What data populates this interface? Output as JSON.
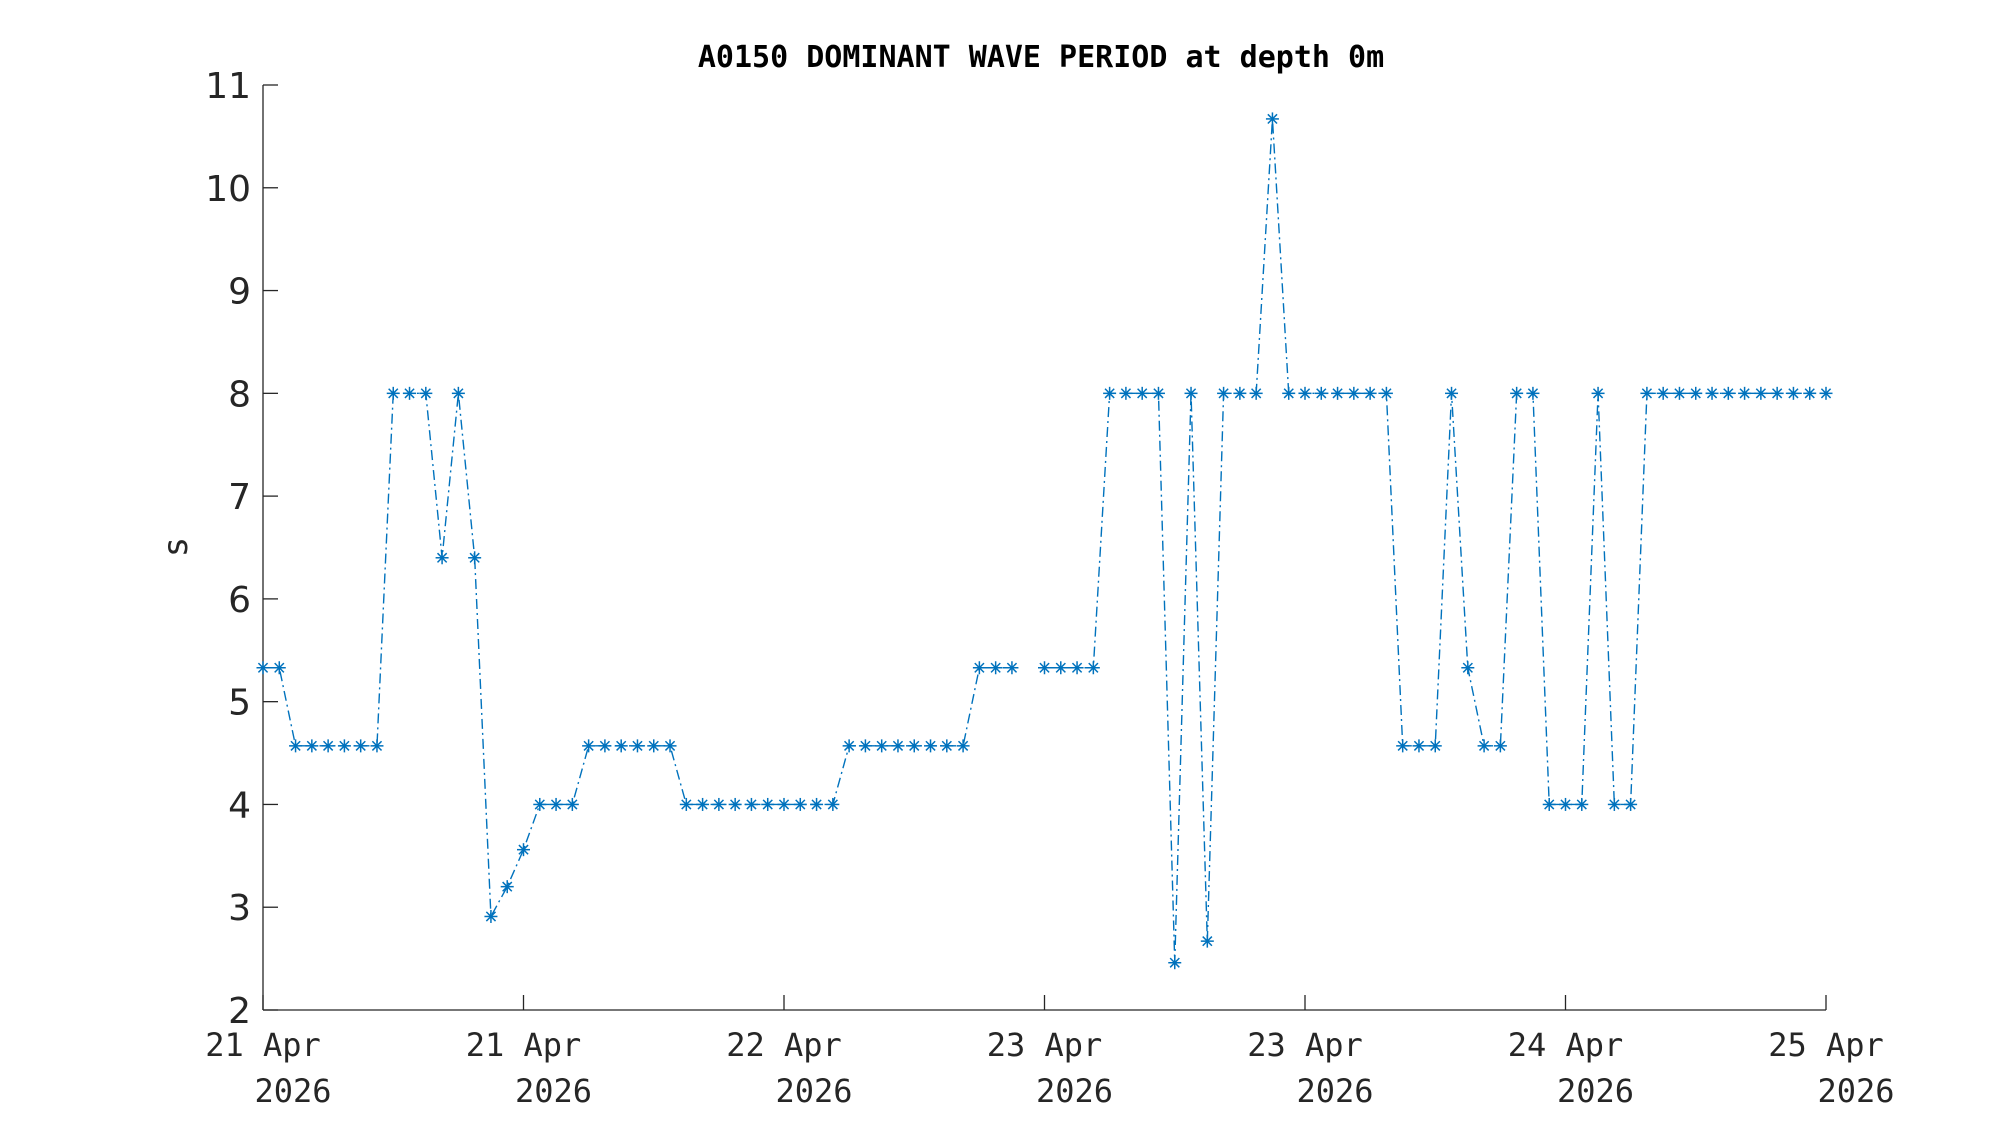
{
  "chart_data": {
    "type": "line",
    "title": "A0150 DOMINANT WAVE PERIOD at depth 0m",
    "xlabel": "",
    "ylabel": "s",
    "ylim": [
      2,
      11
    ],
    "yticks": [
      "2",
      "3",
      "4",
      "5",
      "6",
      "7",
      "8",
      "9",
      "10",
      "11"
    ],
    "xlim": [
      "2026-04-21T00:00",
      "2026-04-25T00:00"
    ],
    "xticks": [
      {
        "value": "2026-04-21T00:00",
        "line1": "21 Apr",
        "line2": "2026"
      },
      {
        "value": "2026-04-21T16:00",
        "line1": "21 Apr",
        "line2": "2026"
      },
      {
        "value": "2026-04-22T08:00",
        "line1": "22 Apr",
        "line2": "2026"
      },
      {
        "value": "2026-04-23T00:00",
        "line1": "23 Apr",
        "line2": "2026"
      },
      {
        "value": "2026-04-23T16:00",
        "line1": "23 Apr",
        "line2": "2026"
      },
      {
        "value": "2026-04-24T08:00",
        "line1": "24 Apr",
        "line2": "2026"
      },
      {
        "value": "2026-04-25T00:00",
        "line1": "25 Apr",
        "line2": "2026"
      }
    ],
    "marker": "asterisk",
    "line_style": "dash-dot",
    "color": "#0072BD",
    "grid": false,
    "series": [
      {
        "x": [
          "2026-04-21T00:00",
          "2026-04-21T01:00",
          "2026-04-21T02:00",
          "2026-04-21T03:00",
          "2026-04-21T04:00",
          "2026-04-21T05:00",
          "2026-04-21T06:00",
          "2026-04-21T07:00",
          "2026-04-21T08:00",
          "2026-04-21T09:00",
          "2026-04-21T10:00",
          "2026-04-21T11:00",
          "2026-04-21T12:00",
          "2026-04-21T13:00",
          "2026-04-21T14:00",
          "2026-04-21T15:00",
          "2026-04-21T16:00",
          "2026-04-21T17:00",
          "2026-04-21T18:00",
          "2026-04-21T19:00",
          "2026-04-21T20:00",
          "2026-04-21T21:00",
          "2026-04-21T22:00",
          "2026-04-21T23:00",
          "2026-04-22T00:00",
          "2026-04-22T01:00",
          "2026-04-22T02:00",
          "2026-04-22T03:00",
          "2026-04-22T04:00",
          "2026-04-22T05:00",
          "2026-04-22T06:00",
          "2026-04-22T07:00",
          "2026-04-22T08:00",
          "2026-04-22T09:00",
          "2026-04-22T10:00",
          "2026-04-22T11:00",
          "2026-04-22T12:00",
          "2026-04-22T13:00",
          "2026-04-22T14:00",
          "2026-04-22T15:00",
          "2026-04-22T16:00",
          "2026-04-22T17:00",
          "2026-04-22T18:00",
          "2026-04-22T19:00",
          "2026-04-22T20:00",
          "2026-04-22T21:00",
          "2026-04-22T22:00",
          "2026-04-22T23:00",
          "2026-04-23T00:00",
          "2026-04-23T01:00",
          "2026-04-23T02:00",
          "2026-04-23T03:00",
          "2026-04-23T04:00",
          "2026-04-23T05:00",
          "2026-04-23T06:00",
          "2026-04-23T07:00",
          "2026-04-23T08:00",
          "2026-04-23T09:00",
          "2026-04-23T10:00",
          "2026-04-23T11:00",
          "2026-04-23T12:00",
          "2026-04-23T13:00",
          "2026-04-23T14:00",
          "2026-04-23T15:00",
          "2026-04-23T16:00",
          "2026-04-23T17:00",
          "2026-04-23T18:00",
          "2026-04-23T19:00",
          "2026-04-23T20:00",
          "2026-04-23T21:00",
          "2026-04-23T22:00",
          "2026-04-23T23:00",
          "2026-04-24T00:00",
          "2026-04-24T01:00",
          "2026-04-24T02:00",
          "2026-04-24T03:00",
          "2026-04-24T04:00",
          "2026-04-24T05:00",
          "2026-04-24T06:00",
          "2026-04-24T07:00",
          "2026-04-24T08:00",
          "2026-04-24T09:00",
          "2026-04-24T10:00",
          "2026-04-24T11:00",
          "2026-04-24T12:00",
          "2026-04-24T13:00",
          "2026-04-24T14:00",
          "2026-04-24T15:00",
          "2026-04-24T16:00",
          "2026-04-24T17:00",
          "2026-04-24T18:00",
          "2026-04-24T19:00",
          "2026-04-24T20:00",
          "2026-04-24T21:00",
          "2026-04-24T22:00",
          "2026-04-24T23:00",
          "2026-04-25T00:00"
        ],
        "y": [
          5.33,
          5.33,
          4.57,
          4.57,
          4.57,
          4.57,
          4.57,
          4.57,
          8,
          8,
          8,
          6.4,
          8,
          6.4,
          2.91,
          3.2,
          3.56,
          4,
          4,
          4,
          4.57,
          4.57,
          4.57,
          4.57,
          4.57,
          4.57,
          4,
          4,
          4,
          4,
          4,
          4,
          4,
          4,
          4,
          4,
          4.57,
          4.57,
          4.57,
          4.57,
          4.57,
          4.57,
          4.57,
          4.57,
          5.33,
          5.33,
          5.33,
          null,
          5.33,
          5.33,
          5.33,
          5.33,
          8,
          8,
          8,
          8,
          2.46,
          8,
          2.67,
          8,
          8,
          8,
          10.67,
          8,
          8,
          8,
          8,
          8,
          8,
          8,
          4.57,
          4.57,
          4.57,
          8,
          5.33,
          4.57,
          4.57,
          8,
          8,
          4,
          4,
          4,
          8,
          4,
          4,
          8,
          8,
          8,
          8,
          8,
          8,
          8,
          8,
          8,
          8,
          8,
          8
        ]
      }
    ]
  }
}
